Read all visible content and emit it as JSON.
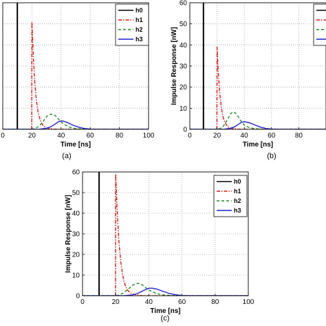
{
  "chart_data": [
    {
      "type": "line",
      "panel_label": "(a)",
      "xlabel": "Time [ns]",
      "ylabel": "",
      "xlim": [
        0,
        100
      ],
      "ylim": [
        0,
        60
      ],
      "xticks": [
        0,
        20,
        40,
        60,
        80,
        100
      ],
      "yticks": [],
      "grid": true,
      "legend": {
        "position": "top-right",
        "visible_entries": [
          "h0",
          "h1",
          "h2",
          "h3"
        ]
      },
      "series": [
        {
          "name": "h0",
          "color": "#000000",
          "style": "solid",
          "x": [
            10,
            10
          ],
          "y": [
            0,
            60
          ]
        },
        {
          "name": "h1",
          "color": "#e01010",
          "style": "dashdot",
          "x": [
            19.9,
            20,
            21,
            22,
            23,
            24,
            25,
            26,
            27,
            28,
            30,
            35,
            40,
            60,
            100
          ],
          "y": [
            0,
            51,
            34,
            22,
            14,
            9,
            6,
            4,
            2.5,
            1.5,
            0.6,
            0.1,
            0,
            0,
            0
          ]
        },
        {
          "name": "h2",
          "color": "#1a8a1a",
          "style": "dashed",
          "x": [
            0,
            20,
            22,
            25,
            28,
            30,
            32,
            34,
            36,
            38,
            40,
            43,
            46,
            50,
            55,
            60,
            100
          ],
          "y": [
            0,
            0,
            0.3,
            1.5,
            4,
            6,
            7,
            7.2,
            6.5,
            5,
            3.5,
            2,
            1,
            0.3,
            0.1,
            0,
            0
          ]
        },
        {
          "name": "h3",
          "color": "#1f1fcc",
          "style": "solid",
          "x": [
            0,
            25,
            30,
            33,
            36,
            38,
            40,
            42,
            45,
            48,
            52,
            56,
            60,
            65,
            100
          ],
          "y": [
            0,
            0,
            0.5,
            1.2,
            2.5,
            3.5,
            4,
            3.8,
            3,
            2,
            1,
            0.4,
            0.1,
            0,
            0
          ]
        }
      ]
    },
    {
      "type": "line",
      "panel_label": "(b)",
      "xlabel": "Time [ns]",
      "ylabel": "Impulse Response [nW]",
      "xlim": [
        0,
        100
      ],
      "ylim": [
        0,
        60
      ],
      "xticks": [
        0,
        20,
        40,
        60,
        80
      ],
      "yticks": [
        0,
        10,
        20,
        30,
        40,
        50,
        60
      ],
      "grid": true,
      "legend": {
        "position": "top-right",
        "visible_entries": []
      },
      "series": [
        {
          "name": "h0",
          "color": "#000000",
          "style": "solid",
          "x": [
            10,
            10
          ],
          "y": [
            0,
            60
          ]
        },
        {
          "name": "h1",
          "color": "#e01010",
          "style": "dashdot",
          "x": [
            19.9,
            20,
            21,
            22,
            23,
            24,
            25,
            26,
            27,
            28,
            30,
            35,
            40,
            60,
            100
          ],
          "y": [
            0,
            39,
            26,
            17,
            11,
            7,
            4.5,
            3,
            2,
            1.2,
            0.5,
            0.1,
            0,
            0,
            0
          ]
        },
        {
          "name": "h2",
          "color": "#1a8a1a",
          "style": "dashed",
          "x": [
            0,
            20,
            22,
            25,
            28,
            30,
            32,
            34,
            36,
            38,
            40,
            43,
            46,
            50,
            55,
            60,
            100
          ],
          "y": [
            0,
            0,
            0.3,
            1.8,
            5,
            7.5,
            8.2,
            7.5,
            5.5,
            3.5,
            2,
            1,
            0.5,
            0.2,
            0,
            0,
            0
          ]
        },
        {
          "name": "h3",
          "color": "#1f1fcc",
          "style": "solid",
          "x": [
            0,
            25,
            30,
            33,
            36,
            38,
            40,
            42,
            45,
            48,
            52,
            56,
            60,
            65,
            100
          ],
          "y": [
            0,
            0,
            0.5,
            1.2,
            2.5,
            3.3,
            3.6,
            3.4,
            2.8,
            2,
            1,
            0.4,
            0.1,
            0,
            0
          ]
        }
      ]
    },
    {
      "type": "line",
      "panel_label": "(c)",
      "xlabel": "Time [ns]",
      "ylabel": "Impulse Response [nW]",
      "xlim": [
        0,
        100
      ],
      "ylim": [
        0,
        60
      ],
      "xticks": [
        0,
        20,
        40,
        60,
        80,
        100
      ],
      "yticks": [
        0,
        10,
        20,
        30,
        40,
        50,
        60
      ],
      "grid": true,
      "legend": {
        "position": "top-right",
        "visible_entries": [
          "h0",
          "h1",
          "h2",
          "h3"
        ]
      },
      "series": [
        {
          "name": "h0",
          "color": "#000000",
          "style": "solid",
          "x": [
            10,
            10
          ],
          "y": [
            0,
            60
          ]
        },
        {
          "name": "h1",
          "color": "#e01010",
          "style": "dashdot",
          "x": [
            19.9,
            20,
            21,
            22,
            23,
            24,
            25,
            26,
            27,
            28,
            30,
            35,
            40,
            60,
            100
          ],
          "y": [
            0,
            59,
            39,
            26,
            17,
            11,
            7,
            4.5,
            3,
            2,
            0.8,
            0.1,
            0,
            0,
            0
          ]
        },
        {
          "name": "h2",
          "color": "#1a8a1a",
          "style": "dashed",
          "x": [
            0,
            20,
            22,
            25,
            28,
            30,
            32,
            34,
            36,
            38,
            40,
            43,
            46,
            50,
            55,
            60,
            100
          ],
          "y": [
            0,
            0,
            0.3,
            1.5,
            3.5,
            5,
            5.8,
            6,
            5.3,
            4,
            2.8,
            1.6,
            0.8,
            0.3,
            0.1,
            0,
            0
          ]
        },
        {
          "name": "h3",
          "color": "#1f1fcc",
          "style": "solid",
          "x": [
            0,
            25,
            30,
            33,
            36,
            38,
            40,
            42,
            45,
            48,
            52,
            56,
            60,
            65,
            100
          ],
          "y": [
            0,
            0,
            0.4,
            1,
            2.2,
            3,
            3.6,
            3.7,
            3.2,
            2.3,
            1.2,
            0.5,
            0.1,
            0,
            0
          ]
        }
      ]
    }
  ]
}
